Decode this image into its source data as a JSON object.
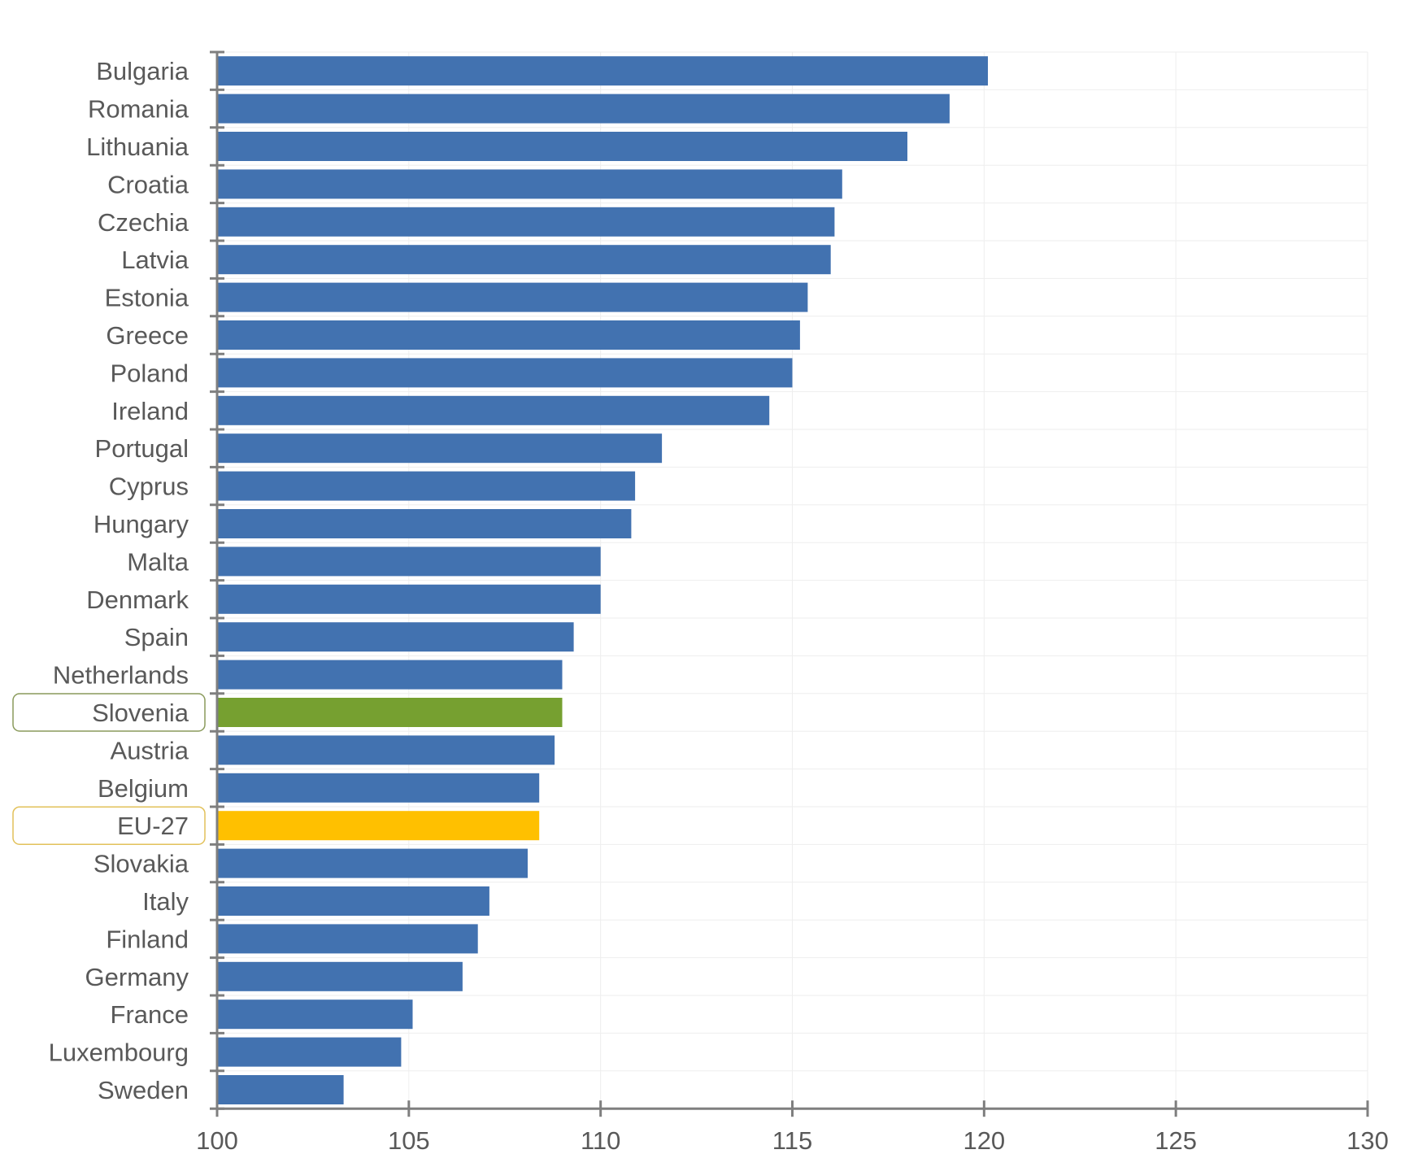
{
  "chart_data": {
    "type": "bar",
    "orientation": "horizontal",
    "categories": [
      "Bulgaria",
      "Romania",
      "Lithuania",
      "Croatia",
      "Czechia",
      "Latvia",
      "Estonia",
      "Greece",
      "Poland",
      "Ireland",
      "Portugal",
      "Cyprus",
      "Hungary",
      "Malta",
      "Denmark",
      "Spain",
      "Netherlands",
      "Slovenia",
      "Austria",
      "Belgium",
      "EU-27",
      "Slovakia",
      "Italy",
      "Finland",
      "Germany",
      "France",
      "Luxembourg",
      "Sweden"
    ],
    "values": [
      120.1,
      119.1,
      118.0,
      116.3,
      116.1,
      116.0,
      115.4,
      115.2,
      115.0,
      114.4,
      111.6,
      110.9,
      110.8,
      110.0,
      110.0,
      109.3,
      109.0,
      109.0,
      108.8,
      108.4,
      108.4,
      108.1,
      107.1,
      106.8,
      106.4,
      105.1,
      104.8,
      103.3
    ],
    "title": "",
    "xlabel": "",
    "ylabel": "",
    "xlim": [
      100,
      130
    ],
    "xticks": [
      "100",
      "105",
      "110",
      "115",
      "120",
      "125",
      "130"
    ],
    "grid": true,
    "colors": {
      "default": "#4272B0",
      "highlight_country": "#76A030",
      "highlight_eu": "#FFC000",
      "highlight_country_border": "#8A9A5B",
      "highlight_eu_border": "#E2C15A"
    },
    "highlights": [
      {
        "category": "Slovenia",
        "color_key": "highlight_country"
      },
      {
        "category": "EU-27",
        "color_key": "highlight_eu"
      }
    ]
  }
}
